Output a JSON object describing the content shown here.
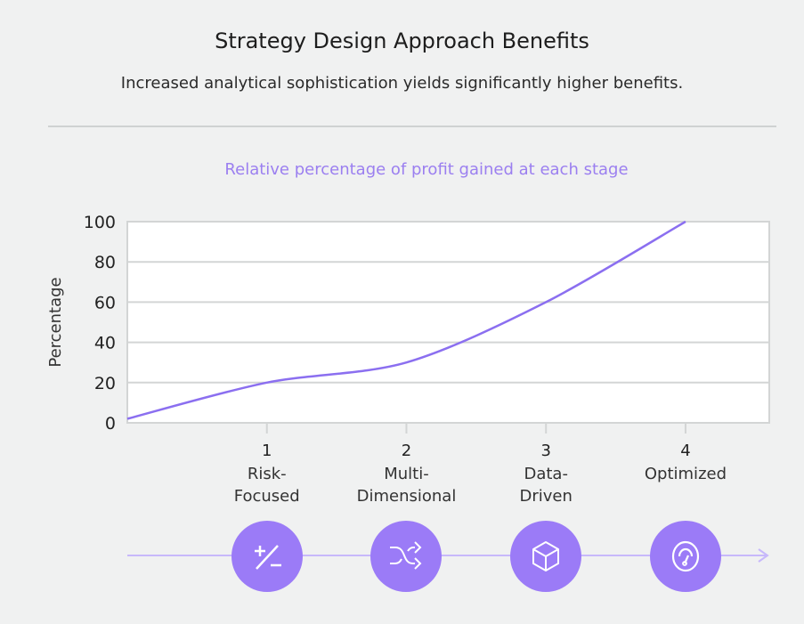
{
  "header": {
    "title": "Strategy Design Approach Benefits",
    "subtitle": "Increased analytical sophistication yields significantly higher benefits."
  },
  "chart_data": {
    "type": "line",
    "title": "Relative percentage of profit gained at each stage",
    "ylabel": "Percentage",
    "xlabel": "",
    "x": [
      0,
      1,
      2,
      3,
      4
    ],
    "values": [
      2,
      20,
      30,
      60,
      100
    ],
    "ylim": [
      0,
      100
    ],
    "xlim": [
      0,
      4.6
    ],
    "yticks": [
      0,
      20,
      40,
      60,
      80,
      100
    ],
    "xticks": [
      1,
      2,
      3,
      4
    ],
    "categories": [
      "Risk-\nFocused",
      "Multi-\nDimensional",
      "Data-\nDriven",
      "Optimized"
    ],
    "grid": true,
    "line_color": "#8b6ff0"
  },
  "stages": [
    {
      "icon": "plus-minus-icon"
    },
    {
      "icon": "shuffle-icon"
    },
    {
      "icon": "cube-icon"
    },
    {
      "icon": "gauge-icon"
    }
  ],
  "colors": {
    "accent": "#9b7bf7",
    "timeline": "#c7b8fb"
  }
}
